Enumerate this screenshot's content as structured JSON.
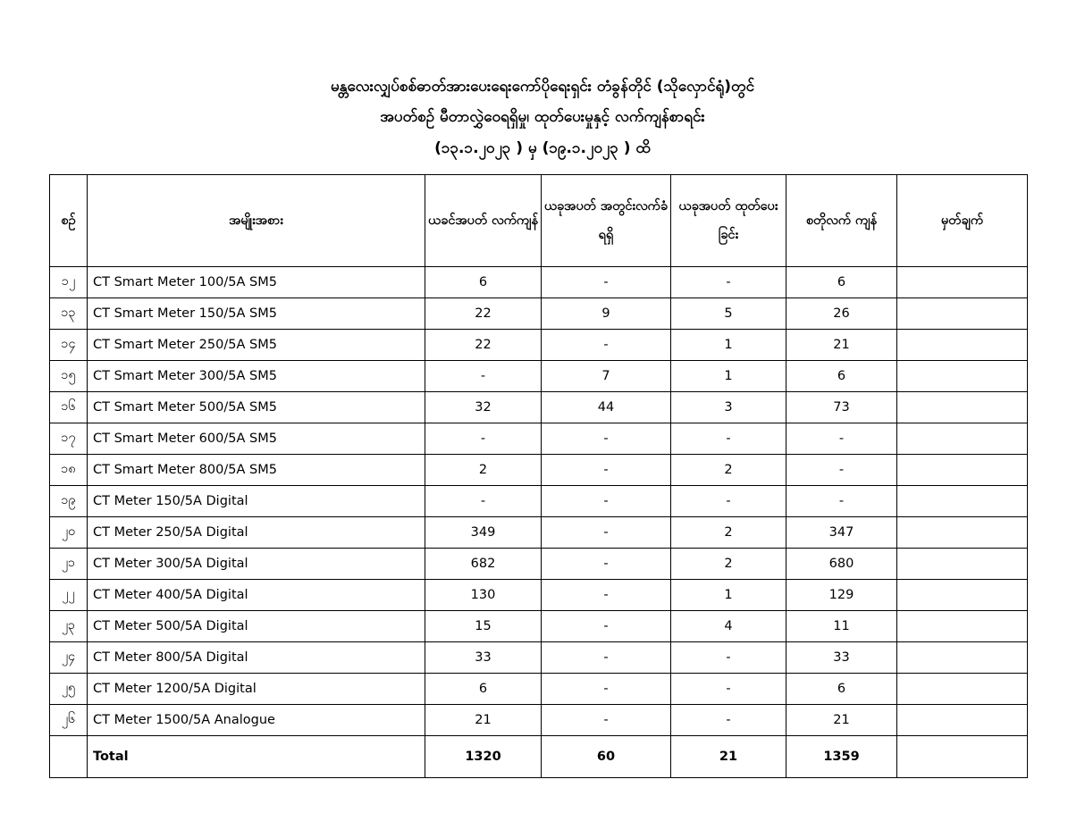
{
  "title": {
    "line1": "မန္တလေးလျှပ်စစ်ဓာတ်အားပေးရေးကော်ပိုရေးရှင်း တံခွန်တိုင် (သိုလှောင်ရုံ)တွင်",
    "line2": "အပတ်စဉ် မီတာလွှဲဝေရရှိမှု၊ ထုတ်ပေးမှုနှင့် လက်ကျန်စာရင်း",
    "line3": "(၁၃.၁.၂၀၂၃ ) မှ (၁၉.၁.၂၀၂၃ ) ထိ"
  },
  "table": {
    "headers": [
      "စဉ်",
      "အမျိုးအစား",
      "ယခင်အပတ် လက်ကျန်",
      "ယခုအပတ် အတွင်းလက်ခံ ရရှိ",
      "ယခုအပတ် ထုတ်ပေးခြင်း",
      "စတိုလက် ကျန်",
      "မှတ်ချက်"
    ],
    "rows": [
      [
        "၁၂",
        "CT Smart Meter 100/5A SM5",
        "6",
        "-",
        "-",
        "6",
        ""
      ],
      [
        "၁၃",
        "CT Smart Meter 150/5A SM5",
        "22",
        "9",
        "5",
        "26",
        ""
      ],
      [
        "၁၄",
        "CT Smart Meter 250/5A SM5",
        "22",
        "-",
        "1",
        "21",
        ""
      ],
      [
        "၁၅",
        "CT Smart Meter 300/5A SM5",
        "-",
        "7",
        "1",
        "6",
        ""
      ],
      [
        "၁၆",
        "CT Smart Meter 500/5A SM5",
        "32",
        "44",
        "3",
        "73",
        ""
      ],
      [
        "၁၇",
        "CT Smart Meter 600/5A SM5",
        "-",
        "-",
        "-",
        "-",
        ""
      ],
      [
        "၁၈",
        "CT Smart Meter 800/5A SM5",
        "2",
        "-",
        "2",
        "-",
        ""
      ],
      [
        "၁၉",
        "CT Meter 150/5A Digital",
        "-",
        "-",
        "-",
        "-",
        ""
      ],
      [
        "၂၀",
        "CT Meter 250/5A Digital",
        "349",
        "-",
        "2",
        "347",
        ""
      ],
      [
        "၂၁",
        "CT Meter 300/5A Digital",
        "682",
        "-",
        "2",
        "680",
        ""
      ],
      [
        "၂၂",
        "CT Meter 400/5A Digital",
        "130",
        "-",
        "1",
        "129",
        ""
      ],
      [
        "၂၃",
        "CT Meter 500/5A Digital",
        "15",
        "-",
        "4",
        "11",
        ""
      ],
      [
        "၂၄",
        "CT Meter 800/5A Digital",
        "33",
        "-",
        "-",
        "33",
        ""
      ],
      [
        "၂၅",
        "CT Meter 1200/5A Digital",
        "6",
        "-",
        "-",
        "6",
        ""
      ],
      [
        "၂၆",
        "CT Meter 1500/5A Analogue",
        "21",
        "-",
        "-",
        "21",
        ""
      ]
    ],
    "total": [
      "",
      "Total",
      "1320",
      "60",
      "21",
      "1359",
      ""
    ]
  }
}
